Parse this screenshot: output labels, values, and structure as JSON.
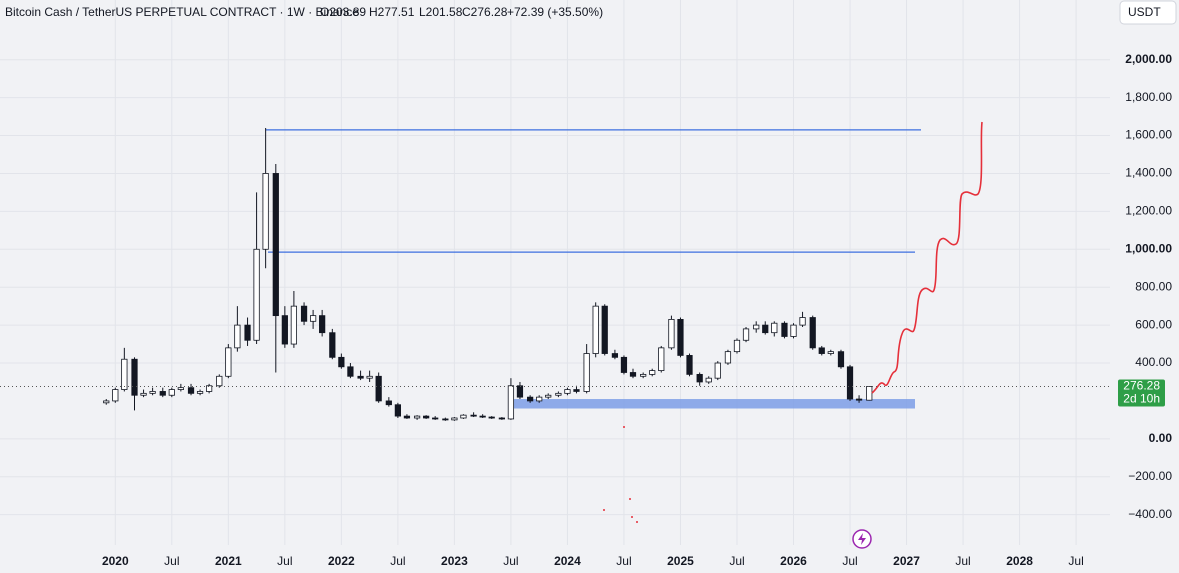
{
  "header": {
    "symbol": "Bitcoin Cash / TetherUS PERPETUAL CONTRACT · 1W · Binance",
    "open": "O203.89",
    "high": "H277.51",
    "low": "L201.58",
    "close": "C276.28",
    "change": "+72.39 (+35.50%)"
  },
  "currency": "USDT",
  "chart_data": {
    "type": "candlestick",
    "countdown": "2d 10h",
    "up_color": "#ffffff",
    "down_color": "#131722",
    "grid": true,
    "xlim": [
      2018.98,
      2028.8
    ],
    "ylim": [
      -560,
      2315
    ],
    "xticks": [
      2020,
      {
        "value": 2020.5,
        "label": "Jul"
      },
      2021,
      {
        "value": 2021.5,
        "label": "Jul"
      },
      2022,
      {
        "value": 2022.5,
        "label": "Jul"
      },
      2023,
      {
        "value": 2023.5,
        "label": "Jul"
      },
      2024,
      {
        "value": 2024.5,
        "label": "Jul"
      },
      2025,
      {
        "value": 2025.5,
        "label": "Jul"
      },
      2026,
      {
        "value": 2026.5,
        "label": "Jul"
      },
      2027,
      {
        "value": 2027.5,
        "label": "Jul"
      },
      2028,
      {
        "value": 2028.5,
        "label": "Jul"
      }
    ],
    "yticks": [
      {
        "value": 2000,
        "label": "2,000.00"
      },
      {
        "value": 1800,
        "label": "1,800.00"
      },
      {
        "value": 1600,
        "label": "1,600.00"
      },
      {
        "value": 1400,
        "label": "1,400.00"
      },
      {
        "value": 1200,
        "label": "1,200.00"
      },
      {
        "value": 1000,
        "label": "1,000.00"
      },
      {
        "value": 800,
        "label": "800.00"
      },
      {
        "value": 600,
        "label": "600.00"
      },
      {
        "value": 400,
        "label": "400.00"
      },
      {
        "value": 0,
        "label": "0.00"
      },
      {
        "value": -200,
        "label": "−200.00"
      },
      {
        "value": -400,
        "label": "−400.00"
      }
    ],
    "levels": [
      1630,
      985
    ],
    "zone": [
      160,
      210
    ],
    "x": [
      2019.92,
      2020.0,
      2020.08,
      2020.17,
      2020.25,
      2020.33,
      2020.42,
      2020.5,
      2020.58,
      2020.67,
      2020.75,
      2020.83,
      2020.92,
      2021.0,
      2021.08,
      2021.17,
      2021.25,
      2021.33,
      2021.42,
      2021.5,
      2021.58,
      2021.67,
      2021.75,
      2021.83,
      2021.92,
      2022.0,
      2022.08,
      2022.17,
      2022.25,
      2022.33,
      2022.42,
      2022.5,
      2022.58,
      2022.67,
      2022.75,
      2022.83,
      2022.92,
      2023.0,
      2023.08,
      2023.17,
      2023.25,
      2023.33,
      2023.42,
      2023.5,
      2023.58,
      2023.67,
      2023.75,
      2023.83,
      2023.92,
      2024.0,
      2024.08,
      2024.17,
      2024.25,
      2024.33,
      2024.42,
      2024.5,
      2024.58,
      2024.67,
      2024.75,
      2024.83,
      2024.92,
      2025.0,
      2025.08,
      2025.17,
      2025.25,
      2025.33,
      2025.42,
      2025.5,
      2025.58,
      2025.67,
      2025.75,
      2025.83,
      2025.92,
      2026.0,
      2026.08,
      2026.17,
      2026.25,
      2026.33,
      2026.42,
      2026.5,
      2026.58,
      2026.67
    ],
    "open": [
      190,
      200,
      260,
      420,
      230,
      240,
      250,
      230,
      260,
      270,
      240,
      250,
      280,
      330,
      480,
      600,
      520,
      1000,
      1400,
      650,
      500,
      700,
      620,
      650,
      560,
      430,
      380,
      330,
      320,
      330,
      200,
      180,
      120,
      110,
      120,
      110,
      105,
      100,
      110,
      125,
      120,
      115,
      110,
      105,
      280,
      220,
      200,
      220,
      230,
      240,
      260,
      250,
      450,
      700,
      450,
      430,
      350,
      330,
      340,
      360,
      480,
      630,
      440,
      340,
      300,
      320,
      400,
      460,
      520,
      580,
      600,
      560,
      610,
      540,
      600,
      640,
      480,
      450,
      460,
      380,
      210,
      203.89
    ],
    "high": [
      210,
      270,
      480,
      430,
      260,
      270,
      270,
      270,
      290,
      290,
      260,
      290,
      340,
      500,
      700,
      640,
      1300,
      1640,
      1450,
      700,
      780,
      720,
      680,
      680,
      580,
      450,
      400,
      360,
      360,
      350,
      220,
      190,
      130,
      125,
      125,
      120,
      112,
      115,
      130,
      140,
      130,
      120,
      115,
      320,
      300,
      230,
      230,
      240,
      250,
      270,
      280,
      500,
      720,
      710,
      470,
      440,
      370,
      350,
      370,
      490,
      650,
      640,
      450,
      350,
      330,
      410,
      470,
      530,
      590,
      620,
      620,
      620,
      620,
      610,
      670,
      650,
      490,
      470,
      470,
      390,
      230,
      277.51
    ],
    "low": [
      180,
      190,
      250,
      150,
      220,
      230,
      220,
      220,
      250,
      230,
      230,
      240,
      270,
      320,
      460,
      490,
      500,
      900,
      350,
      480,
      480,
      600,
      580,
      540,
      420,
      370,
      320,
      310,
      300,
      190,
      170,
      110,
      105,
      100,
      105,
      100,
      95,
      95,
      105,
      115,
      110,
      105,
      100,
      100,
      210,
      190,
      190,
      210,
      220,
      230,
      240,
      240,
      430,
      440,
      420,
      340,
      320,
      320,
      330,
      350,
      470,
      430,
      330,
      280,
      290,
      310,
      390,
      450,
      510,
      560,
      550,
      540,
      530,
      530,
      590,
      470,
      440,
      440,
      370,
      200,
      190,
      201.58
    ],
    "close": [
      200,
      260,
      420,
      230,
      240,
      250,
      230,
      260,
      270,
      240,
      250,
      280,
      330,
      480,
      600,
      520,
      1000,
      1400,
      650,
      500,
      700,
      620,
      650,
      560,
      430,
      380,
      330,
      320,
      330,
      200,
      180,
      120,
      110,
      120,
      110,
      105,
      100,
      110,
      125,
      120,
      115,
      110,
      105,
      280,
      220,
      200,
      220,
      230,
      240,
      260,
      250,
      450,
      700,
      450,
      430,
      350,
      330,
      340,
      360,
      480,
      630,
      440,
      340,
      300,
      320,
      400,
      460,
      520,
      580,
      600,
      560,
      610,
      540,
      600,
      640,
      480,
      450,
      460,
      380,
      210,
      204,
      276.28
    ]
  }
}
